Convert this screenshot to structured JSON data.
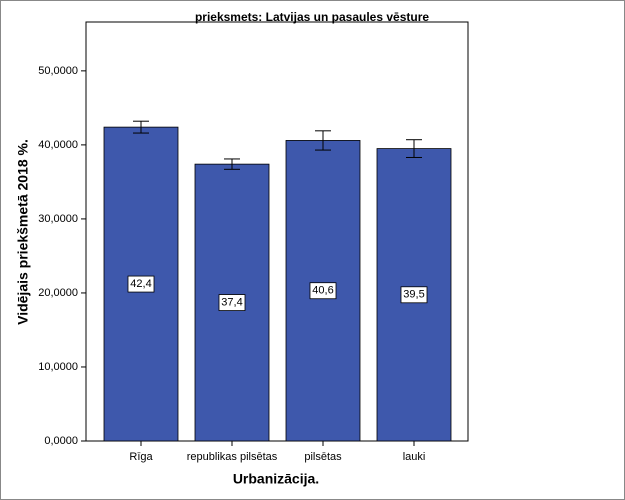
{
  "chart_data": {
    "type": "bar",
    "title": "prieksmets: Latvijas un pasaules vēsture",
    "x_label": "Urbanizācija.",
    "y_label": "Vidējais priekšmetā 2018 %.",
    "categories": [
      "Rīga",
      "republikas pilsētas",
      "pilsētas",
      "lauki"
    ],
    "values": [
      42.4,
      37.4,
      40.6,
      39.5
    ],
    "value_labels": [
      "42,4",
      "37,4",
      "40,6",
      "39,5"
    ],
    "errors": [
      0.8,
      0.7,
      1.3,
      1.2
    ],
    "color": "#3e58ac",
    "ylim": [
      0,
      56.6
    ],
    "yticks": [
      {
        "value": 0,
        "label": "0,0000"
      },
      {
        "value": 10,
        "label": "10,0000"
      },
      {
        "value": 20,
        "label": "20,0000"
      },
      {
        "value": 30,
        "label": "30,0000"
      },
      {
        "value": 40,
        "label": "40,0000"
      },
      {
        "value": 50,
        "label": "50,0000"
      }
    ]
  }
}
